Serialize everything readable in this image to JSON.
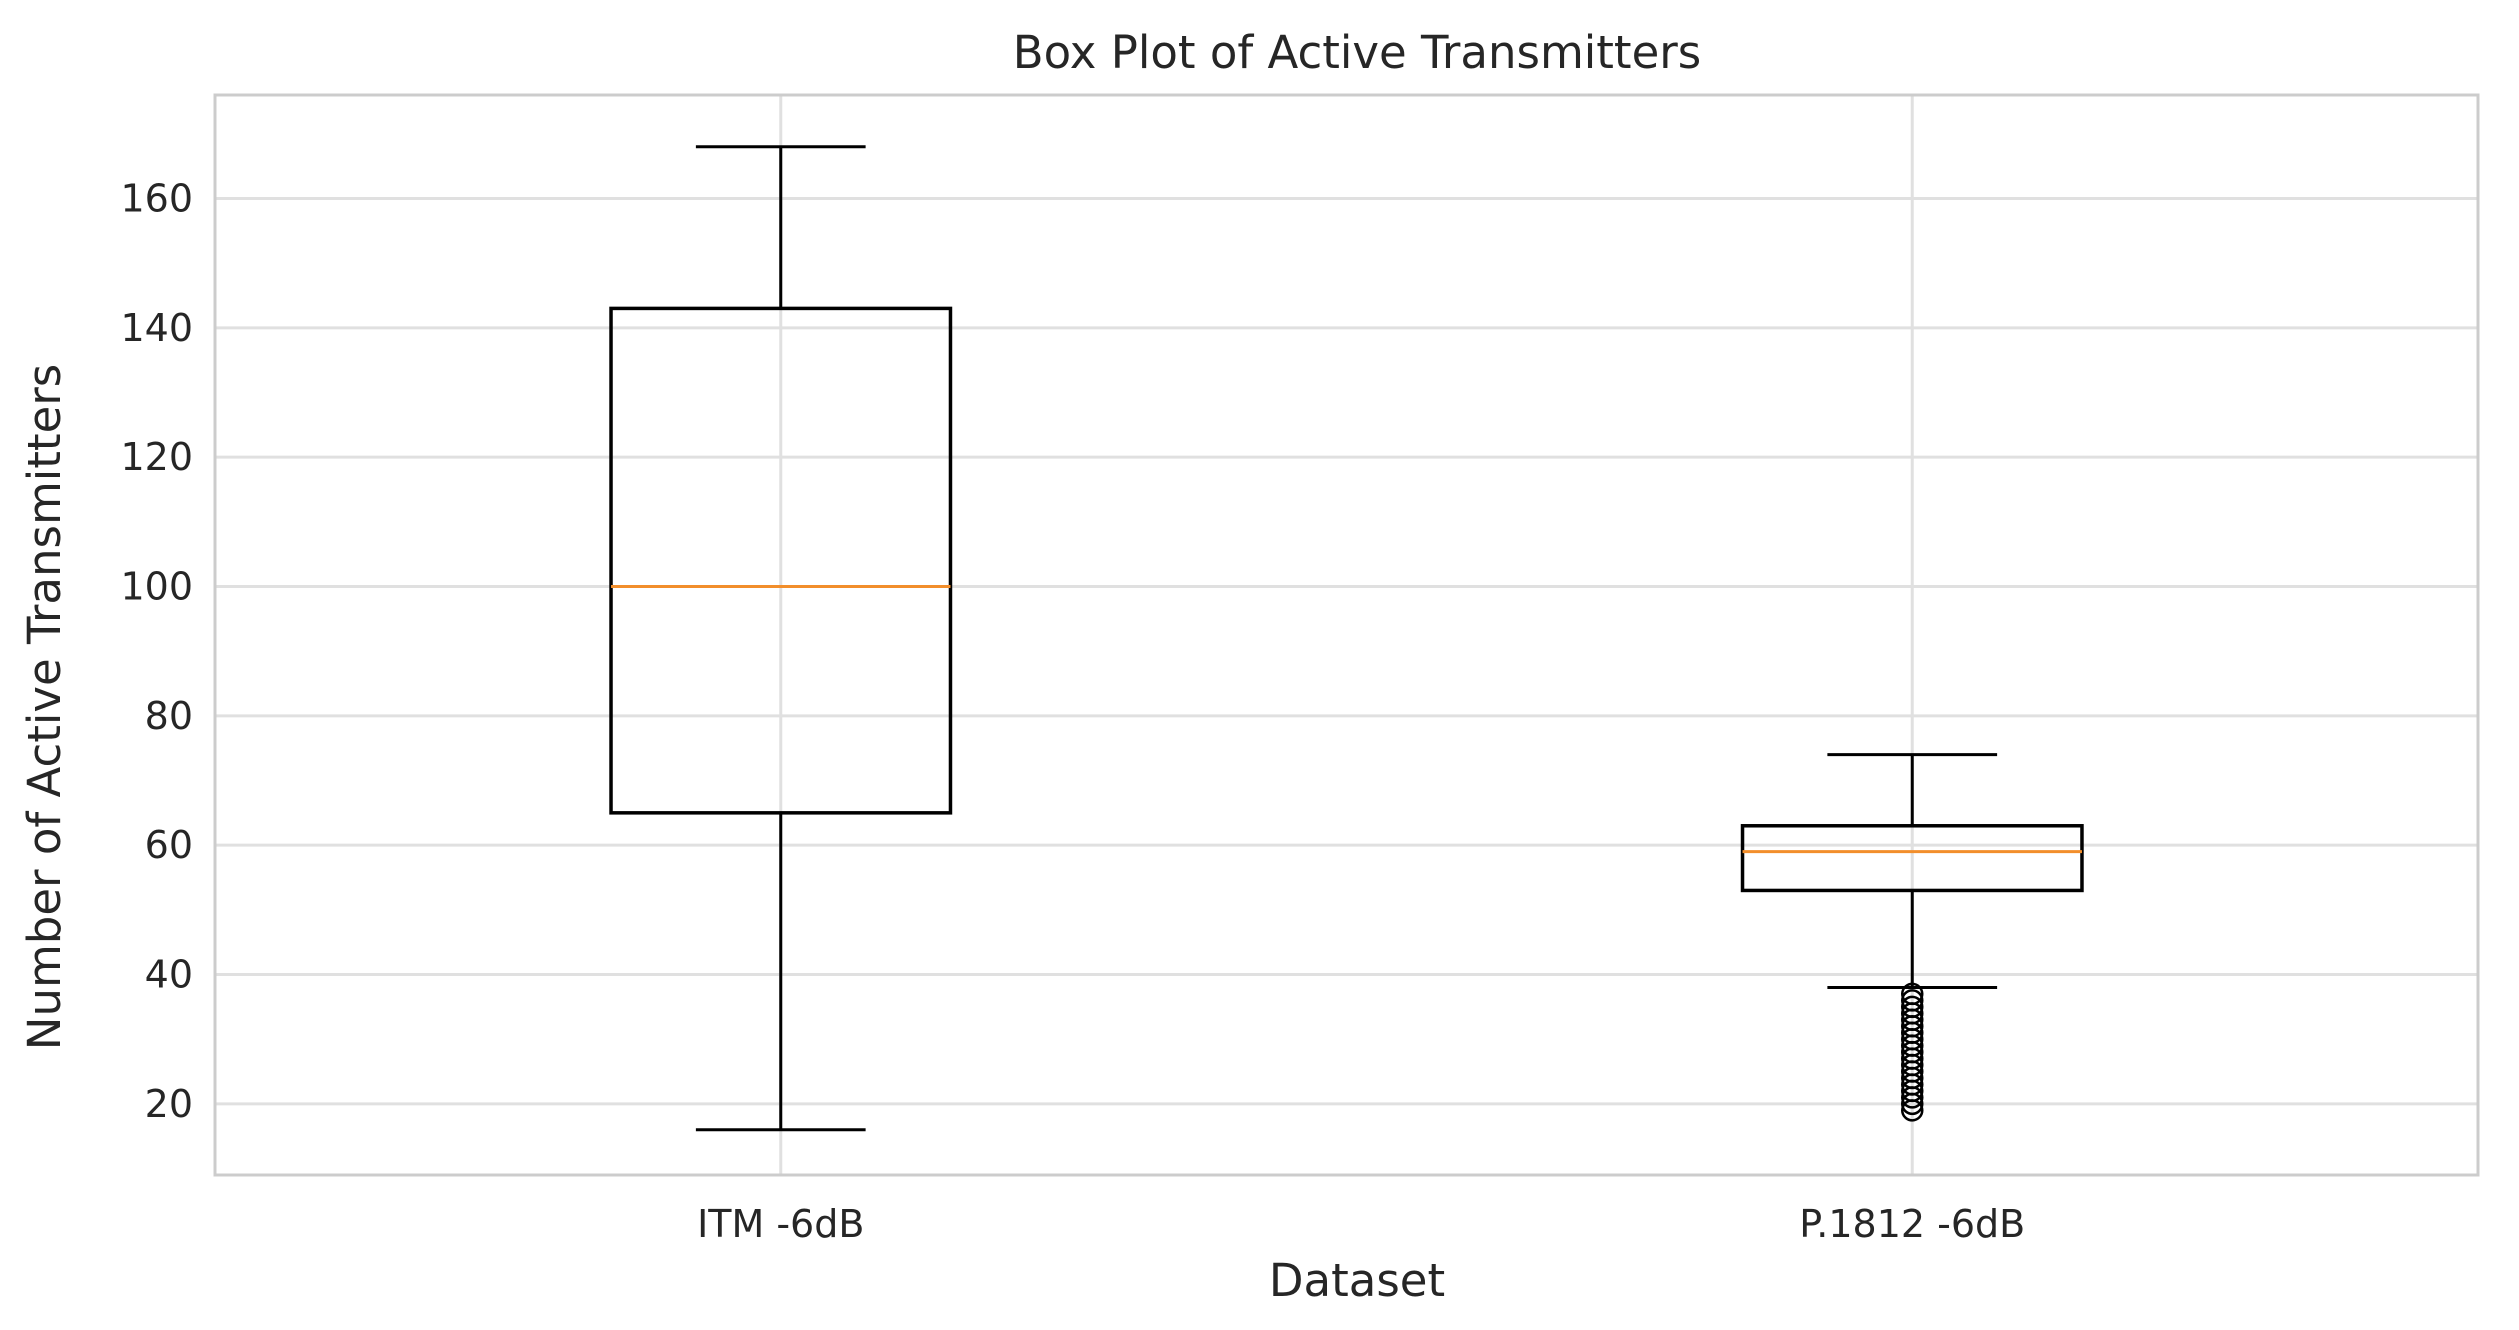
{
  "chart_data": {
    "type": "box",
    "title": "Box Plot of Active Transmitters",
    "xlabel": "Dataset",
    "ylabel": "Number of Active Transmitters",
    "ylim": [
      9,
      176
    ],
    "yticks": [
      20,
      40,
      60,
      80,
      100,
      120,
      140,
      160
    ],
    "grid": true,
    "categories": [
      "ITM -6dB",
      "P.1812 -6dB"
    ],
    "boxes": [
      {
        "label": "ITM -6dB",
        "whisker_low": 16,
        "q1": 65,
        "median": 100,
        "q3": 143,
        "whisker_high": 168,
        "outliers": []
      },
      {
        "label": "P.1812 -6dB",
        "whisker_low": 38,
        "q1": 53,
        "median": 59,
        "q3": 63,
        "whisker_high": 74,
        "outliers": [
          37,
          36,
          35,
          34,
          33,
          32,
          31,
          30,
          29,
          28,
          27,
          26,
          25,
          24,
          23,
          22,
          21,
          20,
          19
        ]
      }
    ],
    "colors": {
      "box": "#000000",
      "median": "#f28e2b",
      "grid": "#e0e0e0",
      "frame": "#cccccc"
    }
  }
}
